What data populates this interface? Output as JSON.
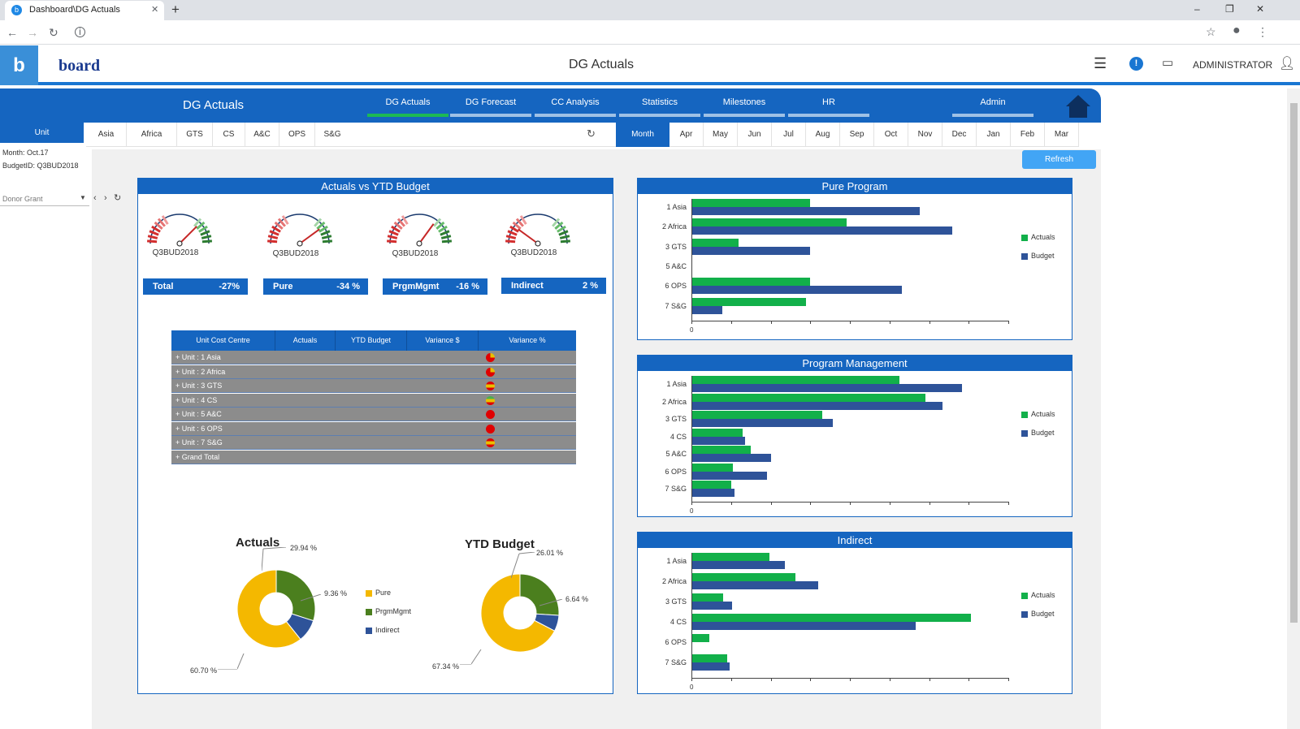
{
  "browser": {
    "tab_title": "Dashboard\\DG Actuals",
    "new_tab": "+",
    "window_controls": [
      "–",
      "❐",
      "✕"
    ]
  },
  "app": {
    "logo_letter": "b",
    "brand": "board",
    "page_title": "DG Actuals",
    "user": "ADMINISTRATOR"
  },
  "dashboard": {
    "title": "DG Actuals",
    "nav_tabs": [
      "DG Actuals",
      "DG Forecast",
      "CC Analysis",
      "Statistics",
      "Milestones",
      "HR",
      "Admin"
    ],
    "active_tab": "DG Actuals"
  },
  "filters": {
    "unit_label": "Unit",
    "units": [
      "Asia",
      "Africa",
      "GTS",
      "CS",
      "A&C",
      "OPS",
      "S&G"
    ],
    "month_label": "Month",
    "months": [
      "Apr",
      "May",
      "Jun",
      "Jul",
      "Aug",
      "Sep",
      "Oct",
      "Nov",
      "Dec",
      "Jan",
      "Feb",
      "Mar"
    ],
    "refresh": "Refresh",
    "month_info": "Month: Oct.17",
    "budget_info": "BudgetID: Q3BUD2018",
    "donor_placeholder": "Donor Grant"
  },
  "actuals_panel": {
    "title": "Actuals vs YTD Budget",
    "gauges": [
      {
        "label": "Q3BUD2018",
        "needle": 0.75
      },
      {
        "label": "Q3BUD2018",
        "needle": 0.8
      },
      {
        "label": "Q3BUD2018",
        "needle": 0.7
      },
      {
        "label": "Q3BUD2018",
        "needle": 0.2
      }
    ],
    "kpis": [
      {
        "name": "Total",
        "value": "-27%"
      },
      {
        "name": "Pure",
        "value": "-34 %"
      },
      {
        "name": "PrgmMgmt",
        "value": "-16 %"
      },
      {
        "name": "Indirect",
        "value": "2 %"
      }
    ],
    "table": {
      "headers": [
        "Unit Cost Centre",
        "Actuals",
        "YTD Budget",
        "Variance $",
        "Variance %"
      ],
      "rows": [
        "+ Unit : 1 Asia",
        "+ Unit : 2 Africa",
        "+ Unit : 3 GTS",
        "+ Unit : 4 CS",
        "+ Unit : 5 A&C",
        "+ Unit : 6 OPS",
        "+ Unit : 7 S&G",
        "+ Grand Total"
      ],
      "indicators": [
        "red-partial",
        "red-partial",
        "yellow-red",
        "yellow-green",
        "red",
        "red",
        "yellow-red",
        ""
      ]
    },
    "pie_actuals": {
      "title": "Actuals",
      "slices": [
        {
          "name": "Pure",
          "pct": 60.7,
          "label": "60.70 %",
          "color": "#f4b800"
        },
        {
          "name": "PrgmMgmt",
          "pct": 29.94,
          "label": "29.94 %",
          "color": "#4b7f1e"
        },
        {
          "name": "Indirect",
          "pct": 9.36,
          "label": "9.36 %",
          "color": "#2e5399"
        }
      ]
    },
    "pie_budget": {
      "title": "YTD Budget",
      "slices": [
        {
          "name": "Pure",
          "pct": 67.34,
          "label": "67.34 %",
          "color": "#f4b800"
        },
        {
          "name": "PrgmMgmt",
          "pct": 26.01,
          "label": "26.01 %",
          "color": "#4b7f1e"
        },
        {
          "name": "Indirect",
          "pct": 6.64,
          "label": "6.64 %",
          "color": "#2e5399"
        }
      ]
    },
    "pie_legend": [
      "Pure",
      "PrgmMgmt",
      "Indirect"
    ]
  },
  "chart_data": [
    {
      "type": "bar",
      "title": "Pure Program",
      "categories": [
        "1 Asia",
        "2 Africa",
        "3 GTS",
        "5 A&C",
        "6 OPS",
        "7 S&G"
      ],
      "series": [
        {
          "name": "Actuals",
          "values": [
            145,
            190,
            57,
            0,
            145,
            140
          ]
        },
        {
          "name": "Budget",
          "values": [
            280,
            320,
            145,
            0,
            258,
            37
          ]
        }
      ],
      "xmin_label": "0"
    },
    {
      "type": "bar",
      "title": "Program Management",
      "categories": [
        "1 Asia",
        "2 Africa",
        "3 GTS",
        "4 CS",
        "5 A&C",
        "6 OPS",
        "7 S&G"
      ],
      "series": [
        {
          "name": "Actuals",
          "values": [
            255,
            287,
            160,
            62,
            72,
            50,
            48
          ]
        },
        {
          "name": "Budget",
          "values": [
            332,
            308,
            173,
            65,
            97,
            92,
            52
          ]
        }
      ],
      "xmin_label": "0"
    },
    {
      "type": "bar",
      "title": "Indirect",
      "categories": [
        "1 Asia",
        "2 Africa",
        "3 GTS",
        "4 CS",
        "6 OPS",
        "7 S&G"
      ],
      "series": [
        {
          "name": "Actuals",
          "values": [
            95,
            127,
            38,
            343,
            21,
            43
          ]
        },
        {
          "name": "Budget",
          "values": [
            114,
            155,
            49,
            275,
            0,
            46
          ]
        }
      ],
      "xmin_label": "0"
    }
  ],
  "legend": {
    "actuals": "Actuals",
    "budget": "Budget"
  },
  "colors": {
    "primary": "#1565c0",
    "green": "#12b04a",
    "navy": "#2e5399",
    "refresh": "#42a5f5"
  }
}
